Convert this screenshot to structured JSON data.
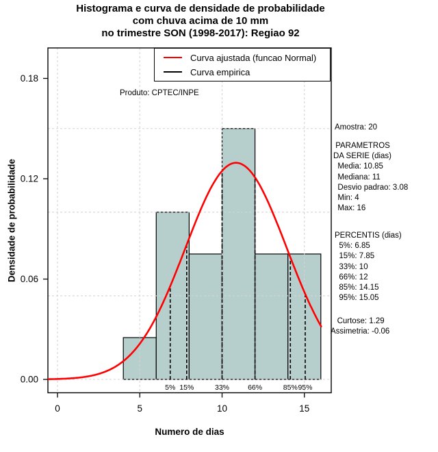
{
  "title": {
    "line1": "Histograma e curva de densidade de probabilidade",
    "line2": "com chuva acima de 10 mm",
    "line3": "no trimestre SON (1998-2017): Regiao 92"
  },
  "watermark": "Produto: CPTEC/INPE",
  "legend": {
    "items": [
      {
        "label": "Curva ajustada (funcao Normal)",
        "color": "#ff0000"
      },
      {
        "label": "Curva empirica",
        "color": "#000000"
      }
    ]
  },
  "axes": {
    "x_label": "Numero de dias",
    "y_label": "Densidade de probabilidade",
    "x_ticks": [
      {
        "label": "0",
        "value": 0
      },
      {
        "label": "5",
        "value": 5
      },
      {
        "label": "10",
        "value": 10
      },
      {
        "label": "15",
        "value": 15
      }
    ],
    "y_ticks": [
      {
        "label": "0.00",
        "value": 0
      },
      {
        "label": "0.06",
        "value": 0.06
      },
      {
        "label": "0.12",
        "value": 0.12
      },
      {
        "label": "0.18",
        "value": 0.18
      }
    ]
  },
  "stats_panel": {
    "sample": [
      "Amostra: 20"
    ],
    "series_params": [
      " PARAMETROS",
      "DA SERIE (dias)",
      "  Media: 10.85",
      "  Mediana: 11",
      "  Desvio padrao: 3.08",
      "  Min: 4",
      "  Max: 16"
    ],
    "percentiles": [
      "PERCENTIS (dias)",
      "  5%: 6.85",
      "  15%: 7.85",
      "  33%: 10",
      "  66%: 12",
      "  85%: 14.15",
      "  95%: 15.05"
    ],
    "shape": [
      "   Curtose: 1.29",
      "Assimetria: -0.06"
    ]
  },
  "chart_data": {
    "type": "histogram+density-line",
    "title": "Histograma e curva de densidade de probabilidade com chuva acima de 10 mm no trimestre SON (1998-2017): Regiao 92",
    "xlabel": "Numero de dias",
    "ylabel": "Densidade de probabilidade",
    "xlim": [
      0,
      16
    ],
    "ylim": [
      0,
      0.19
    ],
    "sample_size": 20,
    "bin_width": 2,
    "bars": [
      {
        "from": 4,
        "to": 6,
        "density": 0.025,
        "count": 1
      },
      {
        "from": 6,
        "to": 8,
        "density": 0.1,
        "count": 4
      },
      {
        "from": 8,
        "to": 10,
        "density": 0.075,
        "count": 3
      },
      {
        "from": 10,
        "to": 12,
        "density": 0.15,
        "count": 6
      },
      {
        "from": 12,
        "to": 14,
        "density": 0.075,
        "count": 3
      },
      {
        "from": 14,
        "to": 16,
        "density": 0.075,
        "count": 3
      }
    ],
    "bar_fill": "#b6cfcd",
    "bar_border": "#000000",
    "normal_fit": {
      "mean": 10.85,
      "sd": 3.08,
      "color": "#ff0000",
      "x_from": -0.58,
      "x_to": 16.05
    },
    "percentile_lines": [
      {
        "label": "5%",
        "value": 6.85
      },
      {
        "label": "15%",
        "value": 7.85
      },
      {
        "label": "33%",
        "value": 10
      },
      {
        "label": "66%",
        "value": 12
      },
      {
        "label": "85%",
        "value": 14.15
      },
      {
        "label": "95%",
        "value": 15.05
      }
    ],
    "statistics": {
      "amostra": 20,
      "media": 10.85,
      "mediana": 11,
      "desvio_padrao": 3.08,
      "min": 4,
      "max": 16,
      "curtose": 1.29,
      "assimetria": -0.06,
      "p5": 6.85,
      "p15": 7.85,
      "p33": 10,
      "p66": 12,
      "p85": 14.15,
      "p95": 15.05
    },
    "gridlines": {
      "x": [
        0,
        5,
        10,
        15
      ],
      "y": [
        0,
        0.05,
        0.1,
        0.15
      ],
      "color": "#d4d4d4",
      "style": "dotted"
    },
    "legend_position": "topright",
    "grid": true
  }
}
